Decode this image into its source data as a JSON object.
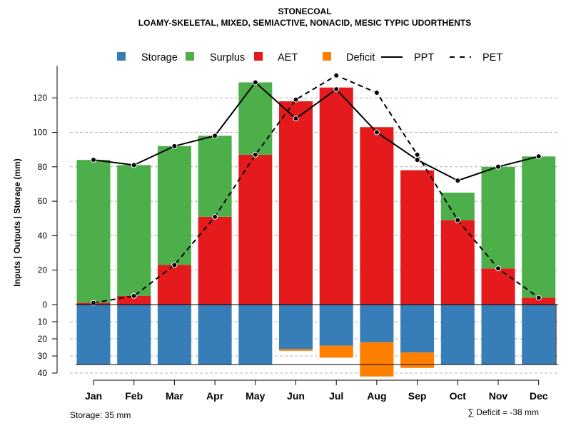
{
  "chart_data": {
    "type": "bar",
    "title": "STONECOAL",
    "subtitle": "LOAMY-SKELETAL, MIXED, SEMIACTIVE, NONACID, MESIC TYPIC UDORTHENTS",
    "ylabel": "Inputs | Outputs | Storage    (mm)",
    "categories": [
      "Jan",
      "Feb",
      "Mar",
      "Apr",
      "May",
      "Jun",
      "Jul",
      "Aug",
      "Sep",
      "Oct",
      "Nov",
      "Dec"
    ],
    "ylim_top": [
      0,
      135
    ],
    "ylim_bottom": [
      0,
      40
    ],
    "yticks_top": [
      0,
      20,
      40,
      60,
      80,
      100,
      120
    ],
    "yticks_bottom": [
      0,
      10,
      20,
      30,
      40
    ],
    "grid": true,
    "legend_position": "top",
    "legend": [
      {
        "key": "storage",
        "label": "Storage",
        "kind": "box",
        "color": "#377EB8"
      },
      {
        "key": "surplus",
        "label": "Surplus",
        "kind": "box",
        "color": "#4DAF4A"
      },
      {
        "key": "aet",
        "label": "AET",
        "kind": "box",
        "color": "#E41A1C"
      },
      {
        "key": "deficit",
        "label": "Deficit",
        "kind": "box",
        "color": "#FF7F00"
      },
      {
        "key": "ppt",
        "label": "PPT",
        "kind": "solid",
        "color": "#000000"
      },
      {
        "key": "pet",
        "label": "PET",
        "kind": "dashed",
        "color": "#000000"
      }
    ],
    "series": [
      {
        "name": "AET",
        "values": [
          1,
          5,
          23,
          51,
          87,
          118,
          126,
          103,
          78,
          49,
          21,
          4
        ]
      },
      {
        "name": "Surplus",
        "values": [
          83,
          76,
          69,
          47,
          42,
          0,
          0,
          0,
          0,
          16,
          59,
          82
        ]
      },
      {
        "name": "Storage",
        "values": [
          35,
          35,
          35,
          35,
          35,
          26,
          24,
          22,
          28,
          35,
          35,
          35
        ]
      },
      {
        "name": "Deficit",
        "values": [
          0,
          0,
          0,
          0,
          0,
          1,
          7,
          20,
          9,
          0,
          0,
          0
        ]
      },
      {
        "name": "PPT",
        "values": [
          84,
          81,
          92,
          98,
          129,
          108,
          125,
          100,
          84,
          72,
          80,
          86
        ]
      },
      {
        "name": "PET",
        "values": [
          1,
          5,
          23,
          51,
          87,
          119,
          133,
          123,
          87,
          49,
          21,
          4
        ]
      }
    ],
    "storage_capacity": 35,
    "footnote_left": "Storage: 35 mm",
    "footnote_right": "∑ Deficit = -38 mm"
  }
}
